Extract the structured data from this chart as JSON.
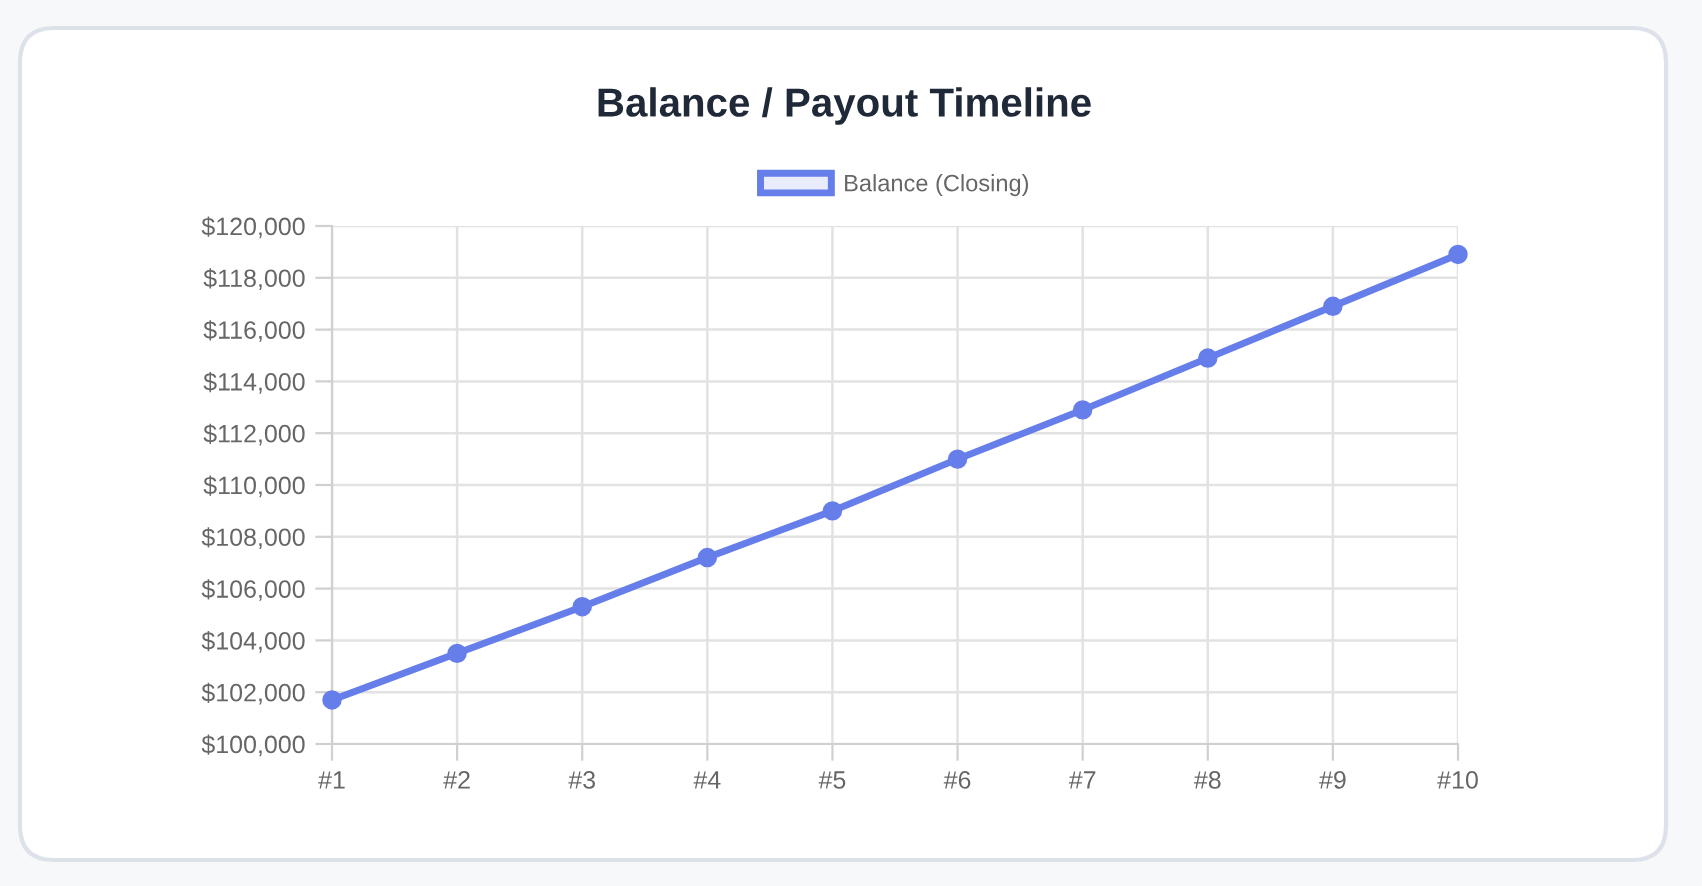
{
  "chart_data": {
    "type": "line",
    "title": "Balance / Payout Timeline",
    "categories": [
      "#1",
      "#2",
      "#3",
      "#4",
      "#5",
      "#6",
      "#7",
      "#8",
      "#9",
      "#10"
    ],
    "series": [
      {
        "name": "Balance (Closing)",
        "color": "#667eea",
        "values": [
          101700,
          103500,
          105300,
          107200,
          109000,
          111000,
          112900,
          114900,
          116900,
          118900
        ]
      }
    ],
    "ylim": [
      100000,
      120000
    ],
    "yticks": [
      {
        "value": 100000,
        "label": "$100,000"
      },
      {
        "value": 102000,
        "label": "$102,000"
      },
      {
        "value": 104000,
        "label": "$104,000"
      },
      {
        "value": 106000,
        "label": "$106,000"
      },
      {
        "value": 108000,
        "label": "$108,000"
      },
      {
        "value": 110000,
        "label": "$110,000"
      },
      {
        "value": 112000,
        "label": "$112,000"
      },
      {
        "value": 114000,
        "label": "$114,000"
      },
      {
        "value": 116000,
        "label": "$116,000"
      },
      {
        "value": 118000,
        "label": "$118,000"
      },
      {
        "value": 120000,
        "label": "$120,000"
      }
    ],
    "grid": true,
    "legend": "top",
    "marker": "circle",
    "line_style": "solid"
  }
}
